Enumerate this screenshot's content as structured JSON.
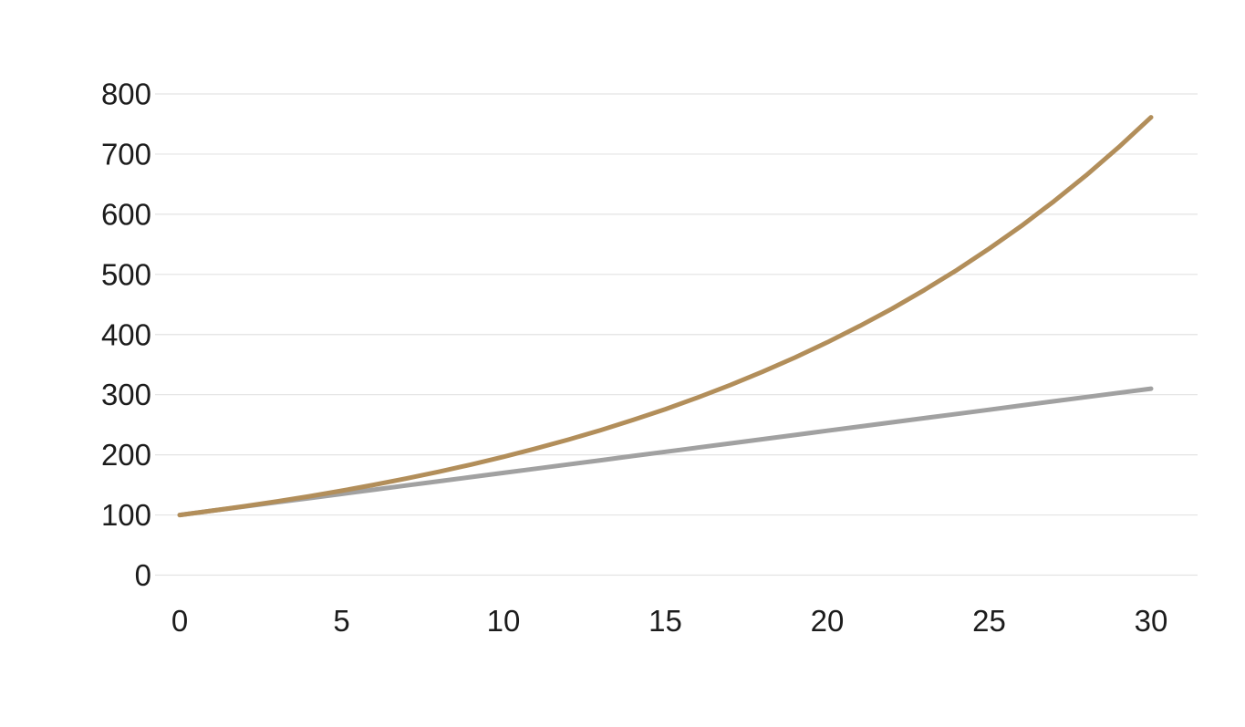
{
  "chart_data": {
    "type": "line",
    "title": "",
    "xlabel": "",
    "ylabel": "",
    "xlim": [
      0,
      30
    ],
    "ylim": [
      0,
      800
    ],
    "grid": "horizontal-only",
    "legend": "none",
    "background_color": "#ffffff",
    "gridline_color": "#e3e3e3",
    "tick_label_color": "#1c1c1c",
    "x_ticks": [
      0,
      5,
      10,
      15,
      20,
      25,
      30
    ],
    "y_ticks": [
      0,
      100,
      200,
      300,
      400,
      500,
      600,
      700,
      800
    ],
    "x": [
      0,
      1,
      2,
      3,
      4,
      5,
      6,
      7,
      8,
      9,
      10,
      11,
      12,
      13,
      14,
      15,
      16,
      17,
      18,
      19,
      20,
      21,
      22,
      23,
      24,
      25,
      26,
      27,
      28,
      29,
      30
    ],
    "series": [
      {
        "id": "linear-growth-gray",
        "color": "#a1a1a1",
        "stroke_width": 5,
        "values": [
          100,
          107,
          114,
          121,
          128,
          135,
          142,
          149,
          156,
          163,
          170,
          177,
          184,
          191,
          198,
          205,
          212,
          219,
          226,
          233,
          240,
          247,
          254,
          261,
          268,
          275,
          282,
          289,
          296,
          303,
          310
        ]
      },
      {
        "id": "compound-growth-gold",
        "color": "#b28e5a",
        "stroke_width": 5,
        "values": [
          100,
          107,
          114.5,
          122.5,
          131.1,
          140.3,
          150.1,
          160.6,
          171.8,
          183.8,
          196.7,
          210.5,
          225.2,
          241,
          257.9,
          275.9,
          295.2,
          315.9,
          338,
          361.7,
          387,
          414.1,
          443,
          474.1,
          507.2,
          542.7,
          580.7,
          621.4,
          664.9,
          711.4,
          761.2
        ]
      }
    ]
  }
}
